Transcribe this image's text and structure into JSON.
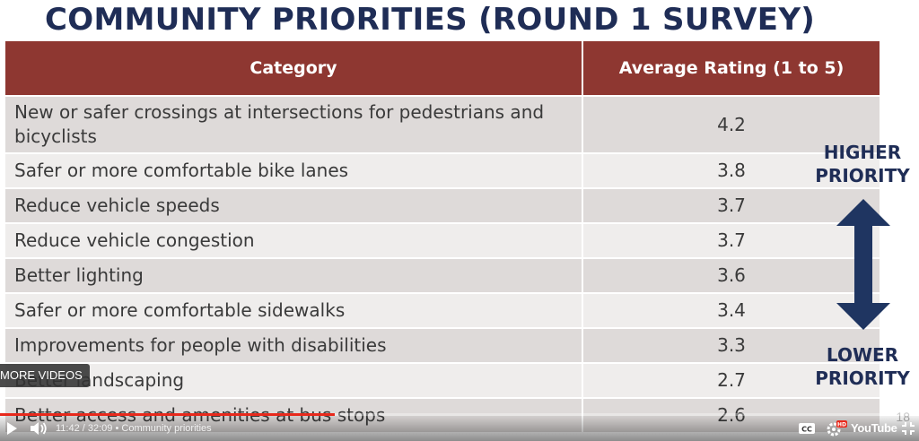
{
  "slide": {
    "title": "COMMUNITY PRIORITIES (ROUND 1 SURVEY)",
    "page_number": "18",
    "table": {
      "headers": [
        "Category",
        "Average Rating (1 to 5)"
      ],
      "rows": [
        {
          "category": "New or safer crossings at intersections for pedestrians and bicyclists",
          "rating": "4.2"
        },
        {
          "category": "Safer or more comfortable bike lanes",
          "rating": "3.8"
        },
        {
          "category": "Reduce vehicle speeds",
          "rating": "3.7"
        },
        {
          "category": "Reduce vehicle congestion",
          "rating": "3.7"
        },
        {
          "category": "Better lighting",
          "rating": "3.6"
        },
        {
          "category": "Safer or more comfortable sidewalks",
          "rating": "3.4"
        },
        {
          "category": "Improvements for people with disabilities",
          "rating": "3.3"
        },
        {
          "category": "Better landscaping",
          "rating": "2.7"
        },
        {
          "category": "Better access and amenities at bus stops",
          "rating": "2.6"
        }
      ]
    },
    "indicator": {
      "higher_line1": "HIGHER",
      "higher_line2": "PRIORITY",
      "lower_line1": "LOWER",
      "lower_line2": "PRIORITY"
    }
  },
  "player": {
    "more_videos_label": "MORE VIDEOS",
    "current_time": "11:42",
    "separator": " / ",
    "duration": "32:09",
    "chapter_separator": " • ",
    "chapter": "Community priorities",
    "progress_fraction": 0.364,
    "logo_text": "YouTube",
    "hd_badge": "HD",
    "cc_label": "CC",
    "icons": {
      "play": "play-icon",
      "volume": "volume-icon",
      "captions": "captions-icon",
      "settings": "settings-icon",
      "exit_fullscreen": "exit-fullscreen-icon"
    }
  },
  "colors": {
    "title": "#1f2d56",
    "header_bg": "#8e3731",
    "row_dark": "#dedad9",
    "row_light": "#efedec",
    "arrow": "#1f3561",
    "progress": "#e8291c"
  }
}
